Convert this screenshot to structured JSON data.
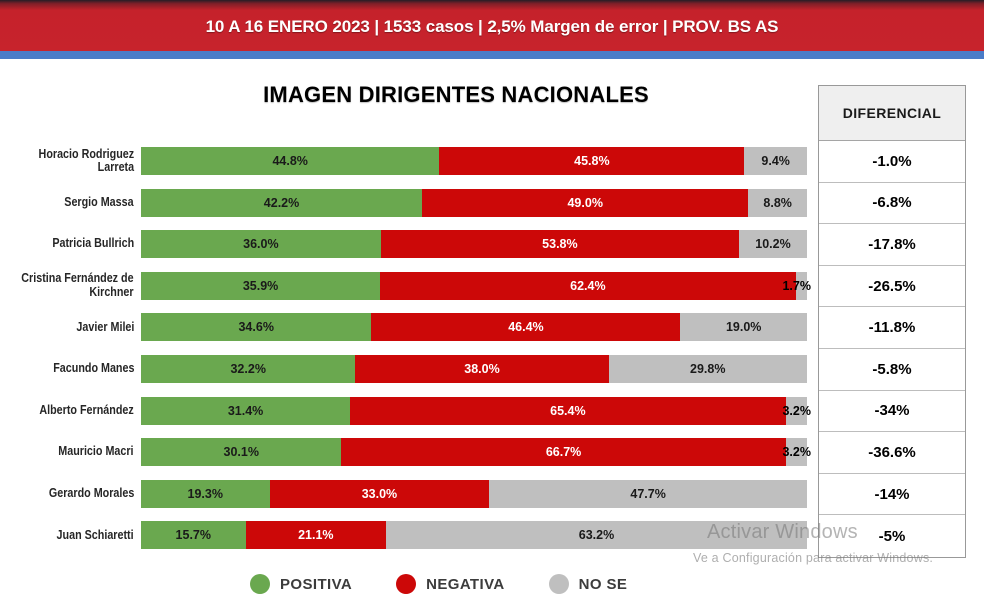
{
  "banner": {
    "text": "10 A 16 ENERO 2023 | 1533 casos  |  2,5% Margen de error  | PROV. BS AS",
    "bg_color": "#c5222b",
    "stripe_color": "#4a7cc8"
  },
  "title": "IMAGEN DIRIGENTES NACIONALES",
  "diferencial": {
    "header": "DIFERENCIAL",
    "values": [
      "-1.0%",
      "-6.8%",
      "-17.8%",
      "-26.5%",
      "-11.8%",
      "-5.8%",
      "-34%",
      "-36.6%",
      "-14%",
      "-5%"
    ]
  },
  "legend": {
    "items": [
      {
        "label": "POSITIVA",
        "color": "#6aa84f"
      },
      {
        "label": "NEGATIVA",
        "color": "#cc0808"
      },
      {
        "label": "NO SE",
        "color": "#bfbfbf"
      }
    ]
  },
  "watermark": {
    "line1": "Activar Windows",
    "line2": "Ve a Configuración para activar Windows."
  },
  "chart_data": {
    "type": "bar",
    "subtype": "horizontal-stacked",
    "title": "IMAGEN DIRIGENTES NACIONALES",
    "xlabel": "",
    "ylabel": "",
    "xlim": [
      0,
      100
    ],
    "value_suffix": "%",
    "legend_position": "bottom",
    "categories": [
      "Horacio Rodriguez\nLarreta",
      "Sergio Massa",
      "Patricia Bullrich",
      "Cristina Fernández de\nKirchner",
      "Javier Milei",
      "Facundo Manes",
      "Alberto Fernández",
      "Mauricio Macri",
      "Gerardo Morales",
      "Juan Schiaretti"
    ],
    "series": [
      {
        "name": "POSITIVA",
        "color": "#6aa84f",
        "text_color": "#1a1a1a",
        "values": [
          44.8,
          42.2,
          36.0,
          35.9,
          34.6,
          32.2,
          31.4,
          30.1,
          19.3,
          15.7
        ],
        "labels": [
          "44.8%",
          "42.2%",
          "36.0%",
          "35.9%",
          "34.6%",
          "32.2%",
          "31.4%",
          "30.1%",
          "19.3%",
          "15.7%"
        ]
      },
      {
        "name": "NEGATIVA",
        "color": "#cc0808",
        "text_color": "#ffffff",
        "values": [
          45.8,
          49.0,
          53.8,
          62.4,
          46.4,
          38.0,
          65.4,
          66.7,
          33.0,
          21.1
        ],
        "labels": [
          "45.8%",
          "49.0%",
          "53.8%",
          "62.4%",
          "46.4%",
          "38.0%",
          "65.4%",
          "66.7%",
          "33.0%",
          "21.1%"
        ]
      },
      {
        "name": "NO SE",
        "color": "#bfbfbf",
        "text_color": "#1a1a1a",
        "values": [
          9.4,
          8.8,
          10.2,
          1.7,
          19.0,
          29.8,
          3.2,
          3.2,
          47.7,
          63.2
        ],
        "labels": [
          "9.4%",
          "8.8%",
          "10.2%",
          "1.7%",
          "19.0%",
          "29.8%",
          "3.2%",
          "3.2%",
          "47.7%",
          "63.2%"
        ]
      }
    ],
    "diferencial": [
      "-1.0%",
      "-6.8%",
      "-17.8%",
      "-26.5%",
      "-11.8%",
      "-5.8%",
      "-34%",
      "-36.6%",
      "-14%",
      "-5%"
    ]
  }
}
